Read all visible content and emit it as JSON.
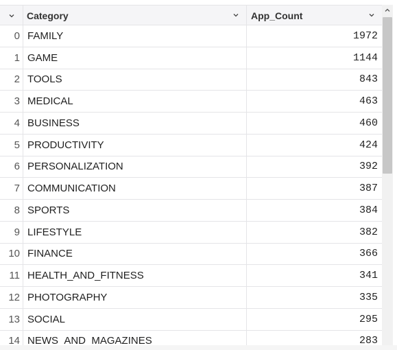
{
  "columns": {
    "index_header": "",
    "category_header": "Category",
    "count_header": "App_Count"
  },
  "rows": [
    {
      "index": "0",
      "category": "FAMILY",
      "count": "1972"
    },
    {
      "index": "1",
      "category": "GAME",
      "count": "1144"
    },
    {
      "index": "2",
      "category": "TOOLS",
      "count": "843"
    },
    {
      "index": "3",
      "category": "MEDICAL",
      "count": "463"
    },
    {
      "index": "4",
      "category": "BUSINESS",
      "count": "460"
    },
    {
      "index": "5",
      "category": "PRODUCTIVITY",
      "count": "424"
    },
    {
      "index": "6",
      "category": "PERSONALIZATION",
      "count": "392"
    },
    {
      "index": "7",
      "category": "COMMUNICATION",
      "count": "387"
    },
    {
      "index": "8",
      "category": "SPORTS",
      "count": "384"
    },
    {
      "index": "9",
      "category": "LIFESTYLE",
      "count": "382"
    },
    {
      "index": "10",
      "category": "FINANCE",
      "count": "366"
    },
    {
      "index": "11",
      "category": "HEALTH_AND_FITNESS",
      "count": "341"
    },
    {
      "index": "12",
      "category": "PHOTOGRAPHY",
      "count": "335"
    },
    {
      "index": "13",
      "category": "SOCIAL",
      "count": "295"
    },
    {
      "index": "14",
      "category": "NEWS_AND_MAGAZINES",
      "count": "283"
    }
  ],
  "icons": {
    "index_sort": "chevron-down-icon",
    "category_sort": "chevron-down-icon",
    "count_sort": "chevron-down-icon",
    "scroll_up": "chevron-up-icon"
  },
  "colors": {
    "header_bg": "#f5f5f7",
    "border": "#e4e4e7",
    "scroll_thumb": "#c7c7c7"
  }
}
